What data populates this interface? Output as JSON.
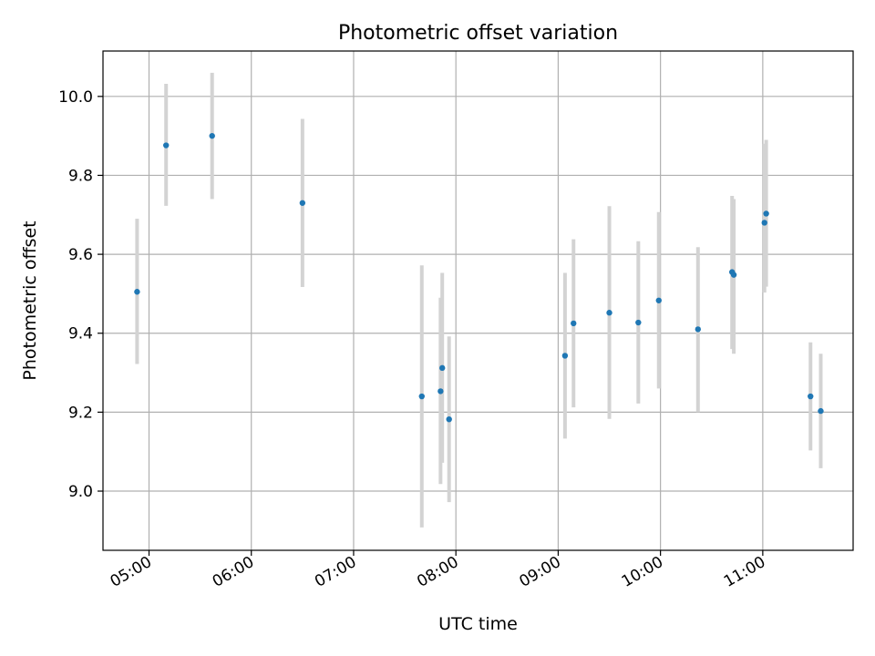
{
  "chart_data": {
    "type": "scatter",
    "title": "Photometric offset variation",
    "xlabel": "UTC time",
    "ylabel": "Photometric offset",
    "x_axis_type": "time",
    "xlim": [
      "04:33",
      "11:53"
    ],
    "ylim": [
      8.85,
      10.115
    ],
    "x_ticks": [
      "05:00",
      "06:00",
      "07:00",
      "08:00",
      "09:00",
      "10:00",
      "11:00"
    ],
    "y_ticks": [
      "9.0",
      "9.2",
      "9.4",
      "9.6",
      "9.8",
      "10.0"
    ],
    "y_tick_values": [
      9.0,
      9.2,
      9.4,
      9.6,
      9.8,
      10.0
    ],
    "grid": true,
    "legend": false,
    "colors": {
      "point": "#1f77b4",
      "errorbar": "#d3d3d3",
      "grid": "#b0b0b0"
    },
    "points": [
      {
        "x": "04:53",
        "y": 9.505,
        "ylow": 9.322,
        "yhigh": 9.69
      },
      {
        "x": "05:10",
        "y": 9.876,
        "ylow": 9.723,
        "yhigh": 10.032
      },
      {
        "x": "05:37",
        "y": 9.9,
        "ylow": 9.74,
        "yhigh": 10.06
      },
      {
        "x": "06:30",
        "y": 9.73,
        "ylow": 9.517,
        "yhigh": 9.943
      },
      {
        "x": "07:40",
        "y": 9.24,
        "ylow": 8.908,
        "yhigh": 9.572
      },
      {
        "x": "07:51",
        "y": 9.253,
        "ylow": 9.018,
        "yhigh": 9.49
      },
      {
        "x": "07:52",
        "y": 9.312,
        "ylow": 9.072,
        "yhigh": 9.553
      },
      {
        "x": "07:56",
        "y": 9.182,
        "ylow": 8.972,
        "yhigh": 9.392
      },
      {
        "x": "09:04",
        "y": 9.343,
        "ylow": 9.133,
        "yhigh": 9.553
      },
      {
        "x": "09:09",
        "y": 9.425,
        "ylow": 9.212,
        "yhigh": 9.638
      },
      {
        "x": "09:30",
        "y": 9.452,
        "ylow": 9.183,
        "yhigh": 9.722
      },
      {
        "x": "09:47",
        "y": 9.427,
        "ylow": 9.222,
        "yhigh": 9.633
      },
      {
        "x": "09:59",
        "y": 9.483,
        "ylow": 9.26,
        "yhigh": 9.707
      },
      {
        "x": "10:22",
        "y": 9.41,
        "ylow": 9.2,
        "yhigh": 9.618
      },
      {
        "x": "10:42",
        "y": 9.555,
        "ylow": 9.36,
        "yhigh": 9.748
      },
      {
        "x": "10:43",
        "y": 9.548,
        "ylow": 9.348,
        "yhigh": 9.74
      },
      {
        "x": "11:01",
        "y": 9.68,
        "ylow": 9.503,
        "yhigh": 9.88
      },
      {
        "x": "11:02",
        "y": 9.703,
        "ylow": 9.518,
        "yhigh": 9.89
      },
      {
        "x": "11:28",
        "y": 9.24,
        "ylow": 9.103,
        "yhigh": 9.377
      },
      {
        "x": "11:34",
        "y": 9.203,
        "ylow": 9.058,
        "yhigh": 9.348
      }
    ]
  }
}
